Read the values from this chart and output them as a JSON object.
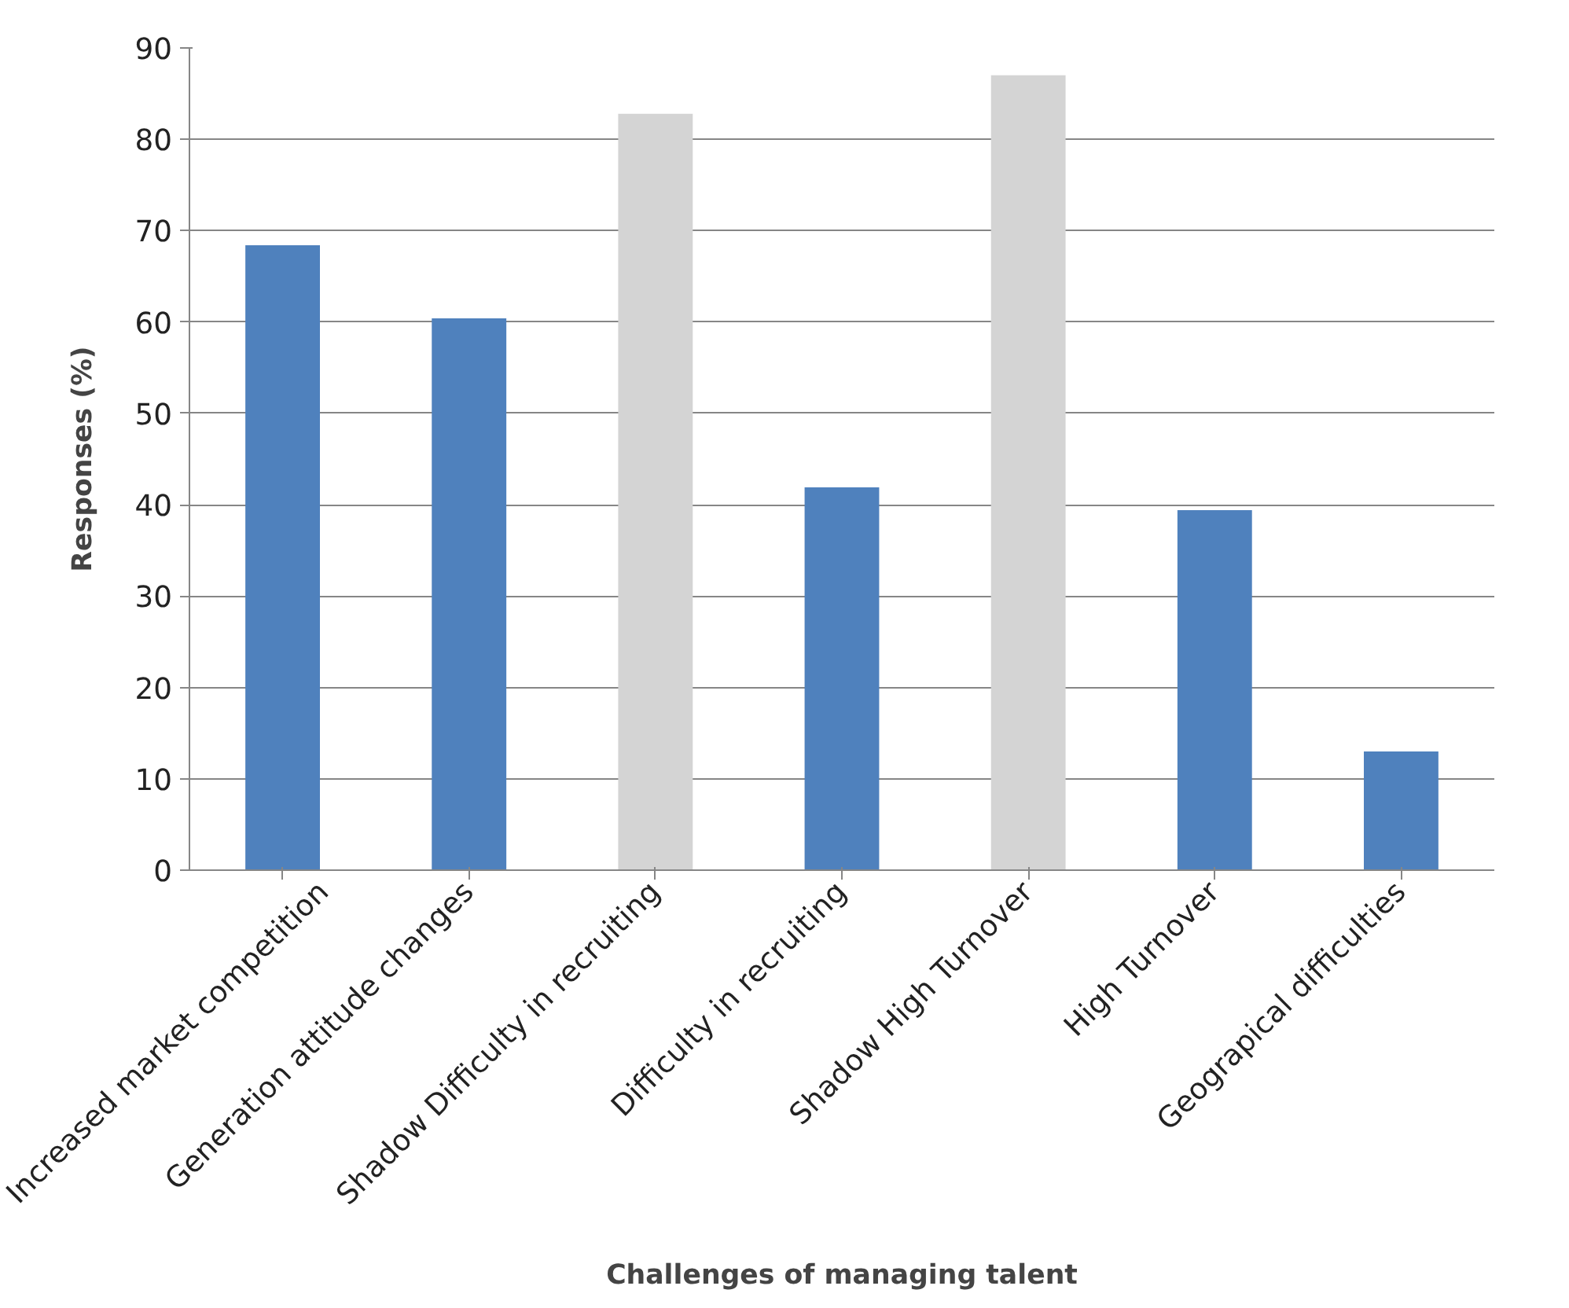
{
  "chart_data": {
    "type": "bar",
    "xlabel": "Challenges of managing talent",
    "ylabel": "Responses (%)",
    "categories": [
      "Increased market competition",
      "Generation attitude changes",
      "Shadow Difficulty in recruiting",
      "Difficulty in recruiting",
      "Shadow High Turnover",
      "High Turnover",
      "Geograpical difficulties"
    ],
    "values": [
      68.4,
      60.4,
      82.8,
      41.9,
      87.0,
      39.4,
      13.0
    ],
    "colors": [
      "#4f81bd",
      "#4f81bd",
      "#d4d4d4",
      "#4f81bd",
      "#d4d4d4",
      "#4f81bd",
      "#4f81bd"
    ],
    "ylim": [
      0,
      90
    ],
    "yticks": [
      0,
      10,
      20,
      30,
      40,
      50,
      60,
      70,
      80,
      90
    ],
    "grid": "y"
  }
}
